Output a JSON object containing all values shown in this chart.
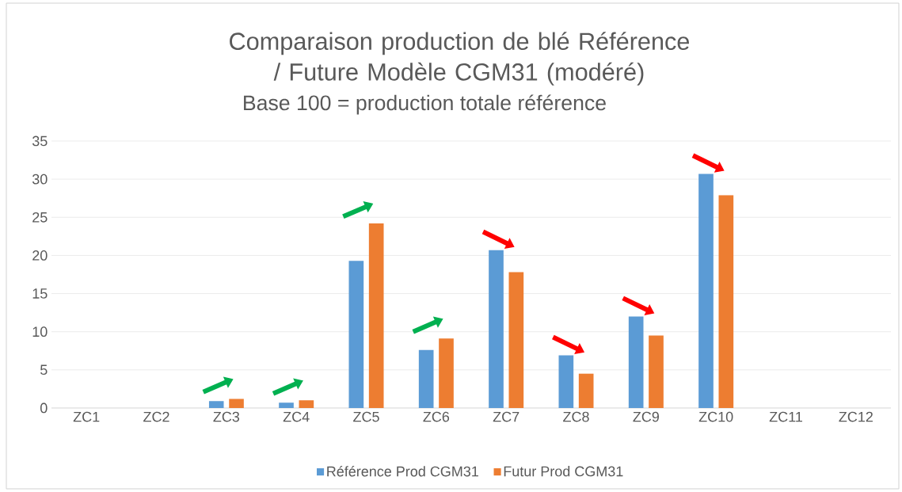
{
  "chart_data": {
    "type": "bar",
    "title": "Comparaison production de blé Référence / Future Modèle CGM31 (modéré)",
    "subtitle": "Base 100 = production totale référence",
    "categories": [
      "ZC1",
      "ZC2",
      "ZC3",
      "ZC4",
      "ZC5",
      "ZC6",
      "ZC7",
      "ZC8",
      "ZC9",
      "ZC10",
      "ZC11",
      "ZC12"
    ],
    "series": [
      {
        "name": "Référence Prod CGM31",
        "color": "#5b9bd5",
        "values": [
          null,
          null,
          0.9,
          0.7,
          19.3,
          7.6,
          20.7,
          6.9,
          12.0,
          30.7,
          null,
          null
        ]
      },
      {
        "name": "Futur Prod CGM31",
        "color": "#ed7d31",
        "values": [
          null,
          null,
          1.2,
          1.0,
          24.2,
          9.1,
          17.8,
          4.5,
          9.5,
          27.9,
          null,
          null
        ]
      }
    ],
    "ylim": [
      0,
      35
    ],
    "yticks": [
      0,
      5,
      10,
      15,
      20,
      25,
      30,
      35
    ],
    "grid": "y",
    "legend": "bottom"
  }
}
